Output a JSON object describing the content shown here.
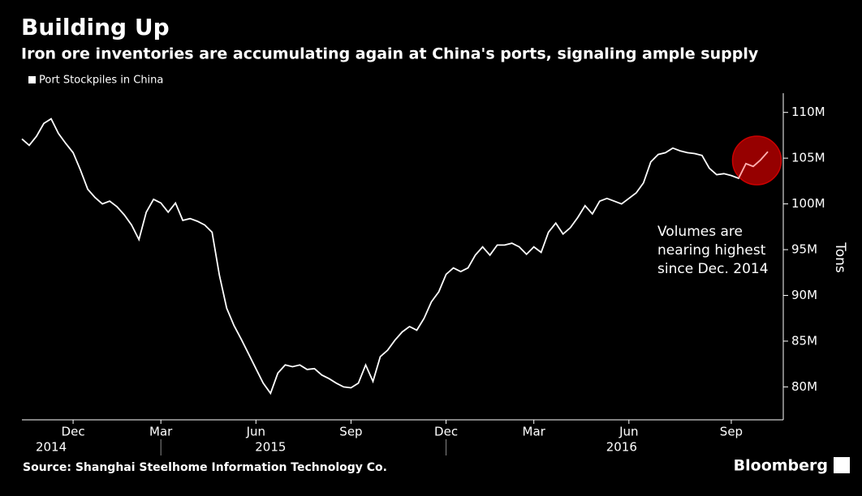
{
  "chart_data": {
    "type": "line",
    "title": "Building Up",
    "subtitle": "Iron ore inventories are accumulating again at China's ports, signaling ample supply",
    "y_label": "Tons",
    "source": "Source: Shanghai Steelhome Information Technology Co.",
    "brand": "Bloomberg",
    "annotation": [
      "Volumes are",
      "nearing highest",
      "since Dec. 2014"
    ],
    "categories": [
      null,
      null,
      null,
      null,
      null,
      null,
      null,
      null,
      null,
      null,
      null,
      null,
      null,
      null,
      null,
      null,
      null,
      null,
      null,
      null,
      null,
      null,
      null,
      null,
      null,
      null,
      null,
      null,
      null,
      null,
      null,
      null,
      null,
      null,
      null,
      null,
      null,
      null,
      null,
      null,
      null,
      null,
      null,
      null,
      null,
      null,
      null,
      null,
      null,
      null,
      null,
      null,
      null,
      null,
      null,
      null,
      null,
      null,
      null,
      null,
      null,
      null,
      null,
      null,
      null,
      null,
      null,
      null,
      null,
      null,
      null,
      null,
      null,
      null,
      null,
      null,
      null,
      null,
      null,
      null,
      null,
      null,
      null,
      null,
      null,
      null,
      null,
      null,
      null,
      null,
      null,
      null,
      null,
      null,
      null,
      null,
      null,
      null,
      null,
      null,
      null,
      null,
      null
    ],
    "series": [
      {
        "name": "Port Stockpiles in China",
        "color": "#ffffff",
        "values": [
          107.1,
          106.4,
          107.4,
          108.8,
          109.3,
          107.7,
          106.6,
          105.6,
          103.7,
          101.6,
          100.7,
          100.0,
          100.3,
          99.7,
          98.8,
          97.7,
          96.1,
          99.1,
          100.5,
          100.1,
          99.1,
          100.1,
          98.2,
          98.4,
          98.1,
          97.7,
          96.9,
          92.2,
          88.6,
          86.7,
          85.2,
          83.6,
          82.0,
          80.4,
          79.3,
          81.5,
          82.4,
          82.2,
          82.4,
          81.9,
          82.0,
          81.3,
          80.9,
          80.4,
          80.0,
          79.9,
          80.4,
          82.4,
          80.6,
          83.3,
          84.0,
          85.1,
          86.0,
          86.6,
          86.2,
          87.5,
          89.3,
          90.4,
          92.3,
          93.0,
          92.6,
          93.0,
          94.4,
          95.3,
          94.4,
          95.5,
          95.5,
          95.7,
          95.3,
          94.5,
          95.3,
          94.7,
          96.9,
          97.9,
          96.7,
          97.4,
          98.5,
          99.8,
          98.9,
          100.3,
          100.6,
          100.3,
          100.0,
          100.6,
          101.2,
          102.3,
          104.6,
          105.4,
          105.6,
          106.1,
          105.8,
          105.6,
          105.5,
          105.3,
          103.9,
          103.2,
          103.3,
          103.1,
          102.8,
          104.4,
          104.1,
          104.8,
          105.7
        ]
      }
    ],
    "xticks": [
      {
        "value": 7,
        "label": "Dec"
      },
      {
        "value": 19,
        "label": "Mar"
      },
      {
        "value": 32,
        "label": "Jun"
      },
      {
        "value": 45,
        "label": "Sep"
      },
      {
        "value": 58,
        "label": "Dec"
      },
      {
        "value": 70,
        "label": "Mar"
      },
      {
        "value": 83,
        "label": "Jun"
      },
      {
        "value": 97,
        "label": "Sep"
      }
    ],
    "year_ticks": [
      {
        "value": 4,
        "label": "2014"
      },
      {
        "value": 34,
        "label": "2015"
      },
      {
        "value": 82,
        "label": "2016"
      }
    ],
    "ylim": [
      76.4,
      112.1
    ],
    "yticks": [
      {
        "value": 80,
        "label": "80M"
      },
      {
        "value": 85,
        "label": "85M"
      },
      {
        "value": 90,
        "label": "90M"
      },
      {
        "value": 95,
        "label": "95M"
      },
      {
        "value": 100,
        "label": "100M"
      },
      {
        "value": 105,
        "label": "105M"
      },
      {
        "value": 110,
        "label": "110M"
      }
    ],
    "grid": false
  }
}
